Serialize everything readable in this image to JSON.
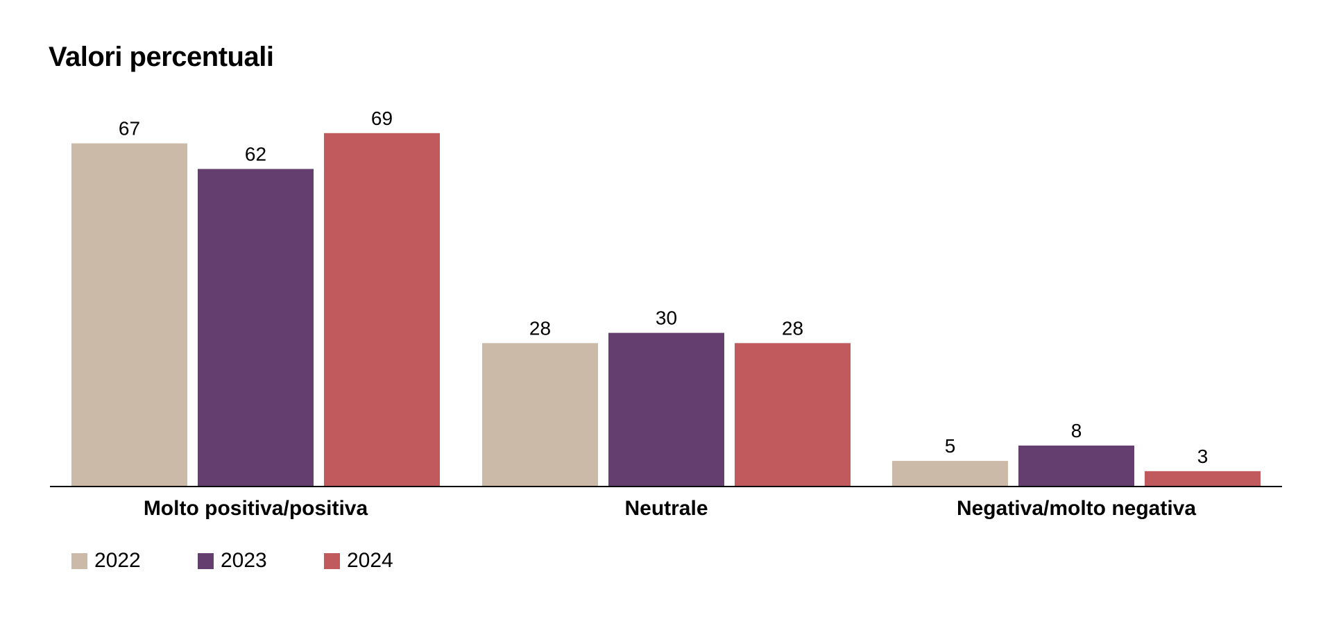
{
  "chart_data": {
    "type": "bar",
    "title": "Valori percentuali",
    "xlabel": "",
    "ylabel": "",
    "ylim": [
      0,
      80
    ],
    "grid": false,
    "legend_position": "bottom-left",
    "categories": [
      "Molto positiva/positiva",
      "Neutrale",
      "Negativa/molto negativa"
    ],
    "series": [
      {
        "name": "2022",
        "color": "#ccbaa8",
        "values": [
          67,
          28,
          5
        ]
      },
      {
        "name": "2023",
        "color": "#643e6f",
        "values": [
          62,
          30,
          8
        ]
      },
      {
        "name": "2024",
        "color": "#c05a5c",
        "values": [
          69,
          28,
          3
        ]
      }
    ]
  }
}
